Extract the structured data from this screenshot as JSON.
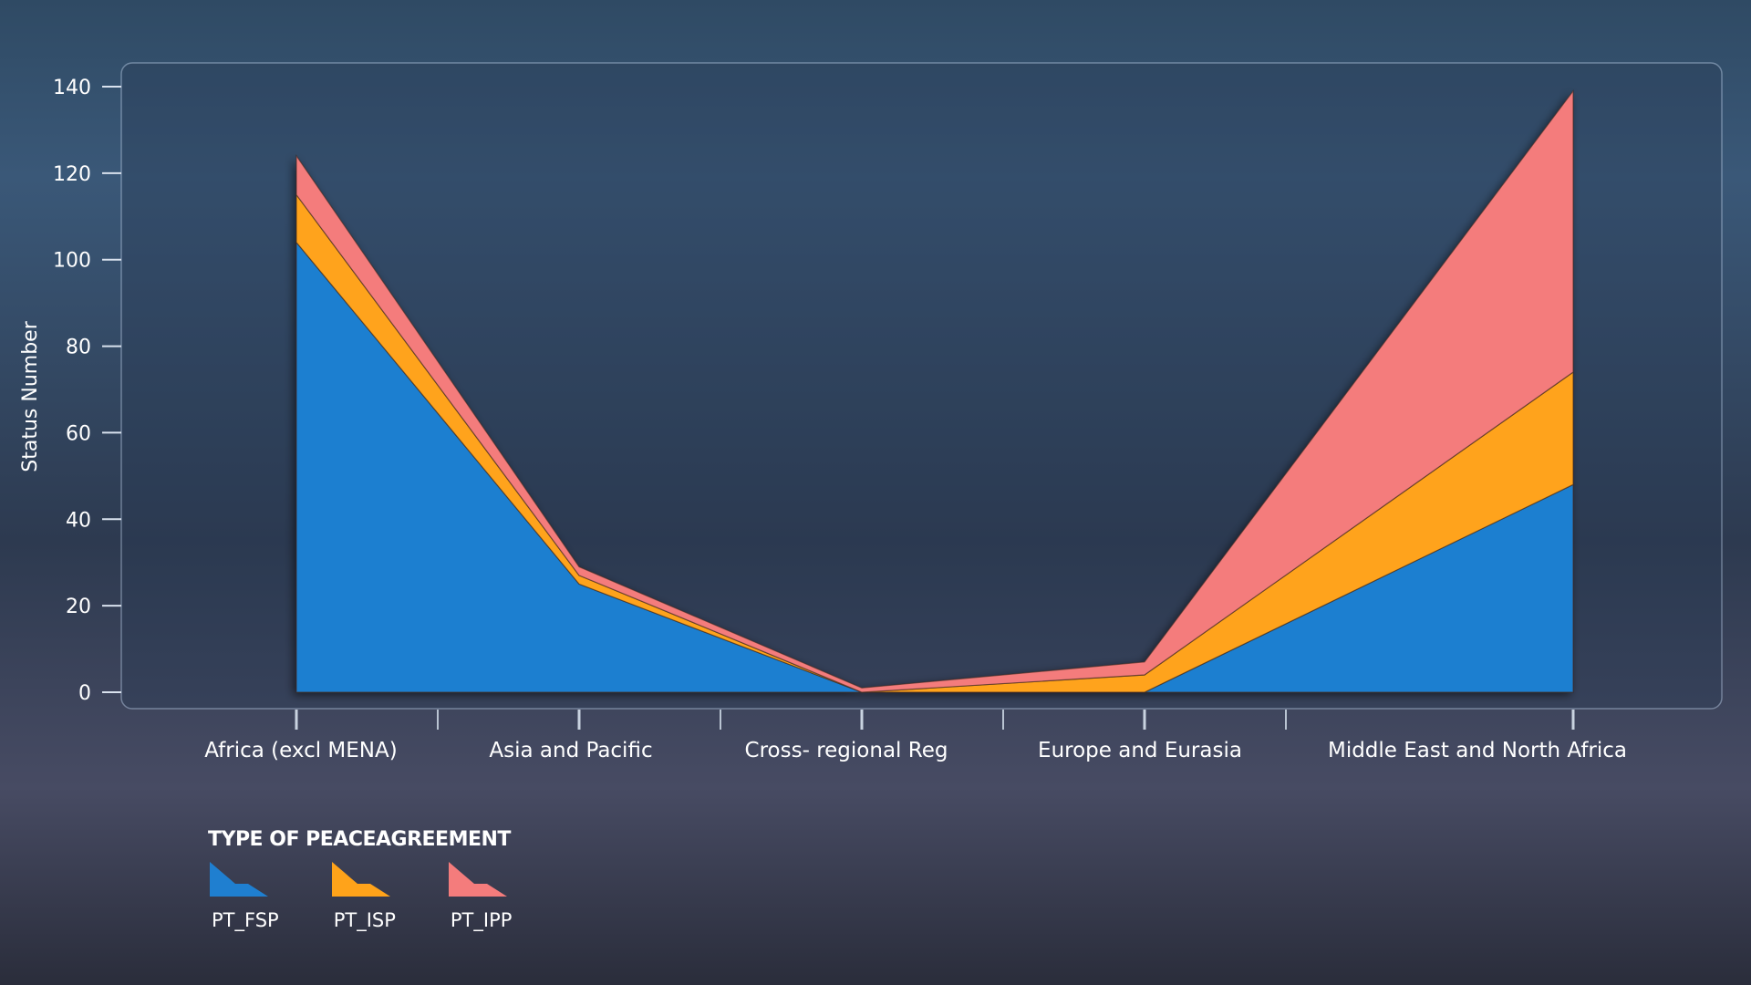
{
  "chart_data": {
    "type": "area",
    "stacked": true,
    "ylabel": "Status Number",
    "xlabel": "",
    "ylim": [
      0,
      140
    ],
    "yticks": [
      0,
      20,
      40,
      60,
      80,
      100,
      120,
      140
    ],
    "categories": [
      "Africa (excl MENA)",
      "Asia and Pacific",
      "Cross- regional Reg",
      "Europe and Eurasia",
      "Middle East and North Africa"
    ],
    "series": [
      {
        "name": "PT_FSP",
        "color": "#1f7fd0",
        "values": [
          104,
          25,
          0,
          0,
          48
        ]
      },
      {
        "name": "PT_ISP",
        "color": "#ffa31a",
        "values": [
          11,
          2,
          0,
          4,
          26
        ]
      },
      {
        "name": "PT_IPP",
        "color": "#f47c7c",
        "values": [
          9,
          2,
          1,
          3,
          65
        ]
      }
    ],
    "legend": {
      "title": "TYPE OF PEACEAGREEMENT",
      "position": "bottom-left"
    }
  }
}
